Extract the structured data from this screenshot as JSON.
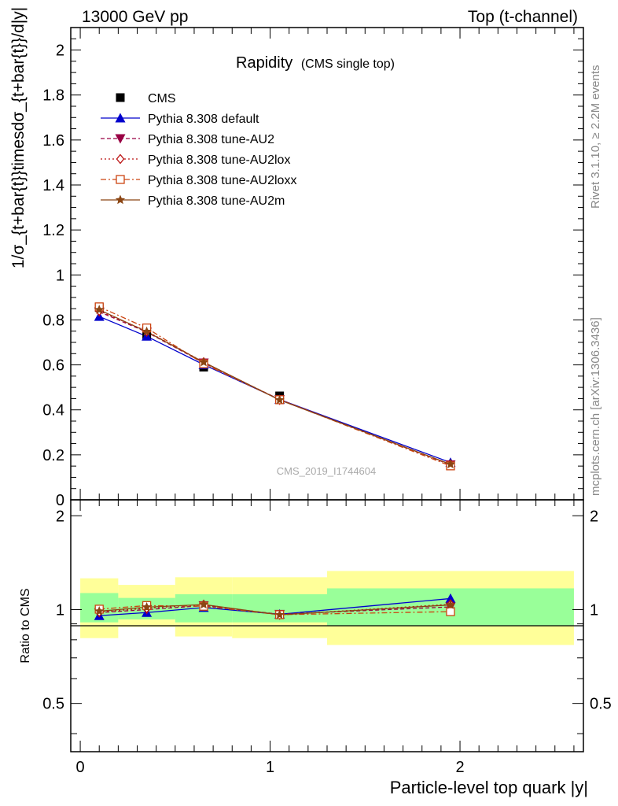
{
  "header": {
    "left": "13000 GeV pp",
    "right": "Top (t-channel)"
  },
  "side": {
    "rivet": "Rivet 3.1.10, ≥ 2.2M events",
    "mcplots": "mcplots.cern.ch [arXiv:1306.3436]"
  },
  "chart_data": {
    "type": "line",
    "title": "Rapidity",
    "subtitle": "(CMS single top)",
    "xlabel": "Particle-level top quark |y|",
    "ylabel": "1/σ_{t+bar{t}}timesdσ_{t+bar{t}}/d|y|",
    "watermark": "CMS_2019_I1744604",
    "xlim": [
      -0.05,
      2.65
    ],
    "ylim": [
      0,
      2.1
    ],
    "ratio_ylabel": "Ratio to CMS",
    "ratio_ylim": [
      0.35,
      2.25
    ],
    "ratio_scale": "log",
    "bins": [
      [
        0.0,
        0.2
      ],
      [
        0.2,
        0.5
      ],
      [
        0.5,
        0.8
      ],
      [
        0.8,
        1.3
      ],
      [
        1.3,
        2.6
      ]
    ],
    "x": [
      0.1,
      0.35,
      0.65,
      1.05,
      1.95
    ],
    "data": {
      "name": "CMS",
      "values": [
        0.855,
        0.735,
        0.59,
        0.462,
        0.153
      ]
    },
    "ratio_band_inner": [
      [
        0.91,
        1.13
      ],
      [
        0.93,
        1.09
      ],
      [
        0.91,
        1.12
      ],
      [
        0.91,
        1.12
      ],
      [
        0.89,
        1.17
      ]
    ],
    "ratio_band_outer": [
      [
        0.81,
        1.26
      ],
      [
        0.88,
        1.2
      ],
      [
        0.82,
        1.27
      ],
      [
        0.81,
        1.27
      ],
      [
        0.77,
        1.33
      ]
    ],
    "series": [
      {
        "name": "Pythia 8.308 default",
        "color": "#0000cc",
        "dash": "",
        "marker": "triangle-up",
        "values": [
          0.815,
          0.727,
          0.601,
          0.446,
          0.166
        ],
        "ratio": [
          0.956,
          0.978,
          1.015,
          0.966,
          1.085
        ]
      },
      {
        "name": "Pythia 8.308 tune-AU2",
        "color": "#990044",
        "dash": "5,3",
        "marker": "triangle-down",
        "values": [
          0.836,
          0.746,
          0.609,
          0.446,
          0.156
        ],
        "ratio": [
          0.978,
          1.0,
          1.03,
          0.966,
          1.02
        ]
      },
      {
        "name": "Pythia 8.308 tune-AU2lox",
        "color": "#bb1111",
        "dash": "2,3",
        "marker": "diamond-open",
        "values": [
          0.84,
          0.75,
          0.612,
          0.444,
          0.158
        ],
        "ratio": [
          0.982,
          1.01,
          1.037,
          0.962,
          1.04
        ]
      },
      {
        "name": "Pythia 8.308 tune-AU2loxx",
        "color": "#cc4411",
        "dash": "7,3,2,3",
        "marker": "square-open",
        "values": [
          0.858,
          0.764,
          0.605,
          0.445,
          0.151
        ],
        "ratio": [
          1.003,
          1.03,
          1.025,
          0.963,
          0.985
        ]
      },
      {
        "name": "Pythia 8.308 tune-AU2m",
        "color": "#8b4513",
        "dash": "",
        "marker": "star",
        "values": [
          0.845,
          0.748,
          0.612,
          0.444,
          0.158
        ],
        "ratio": [
          0.988,
          1.018,
          1.038,
          0.962,
          1.035
        ]
      }
    ]
  }
}
